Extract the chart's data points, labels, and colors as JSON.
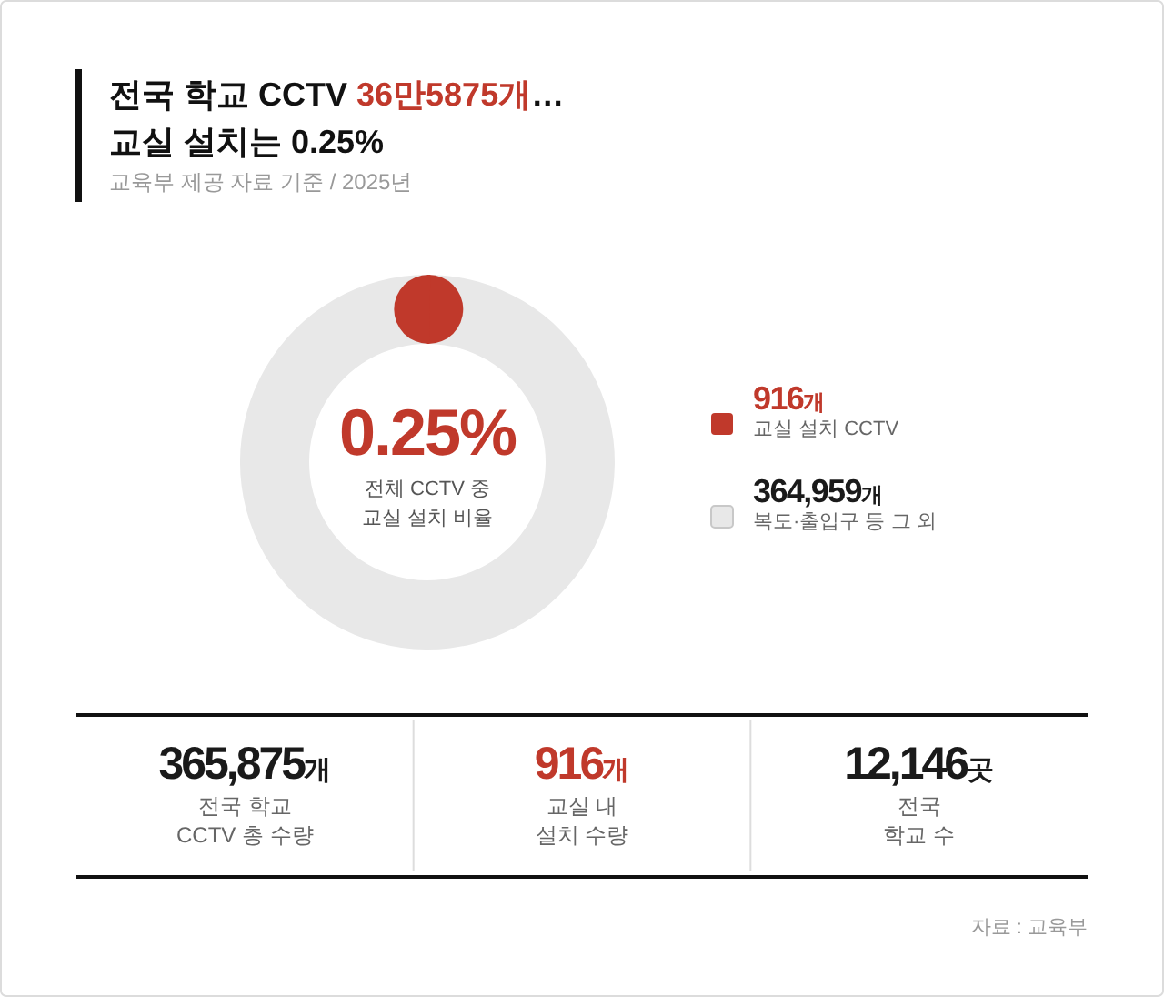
{
  "chart_data": [
    {
      "type": "donut",
      "title": "전국 학교 CCTV 36만5875개…\n교실 설치는 0.25%",
      "subtitle": "교육부 제공 자료 기준 / 2025년",
      "categories": [
        "교실 설치 CCTV",
        "복도·출입구 등 그 외"
      ],
      "values": [
        916,
        364959
      ],
      "colors": [
        "#c0392b",
        "#e8e8e8"
      ],
      "value_labels": [
        "916개",
        "364,959개"
      ],
      "annotations": [
        "0.25%",
        "전체 CCTV 중\n교실 설치 비율"
      ],
      "legend": "right"
    },
    {
      "type": "other",
      "categories": [
        "전국 학교\nCCTV 총 수량",
        "교실 내\n설치 수량",
        "전국\n학교 수"
      ],
      "value_labels": [
        "365,875개",
        "916개",
        "12,146곳"
      ],
      "colors": [
        "#1a1a1a",
        "#c0392b",
        "#1a1a1a"
      ],
      "annotations": [
        "자료 : 교육부"
      ]
    }
  ]
}
